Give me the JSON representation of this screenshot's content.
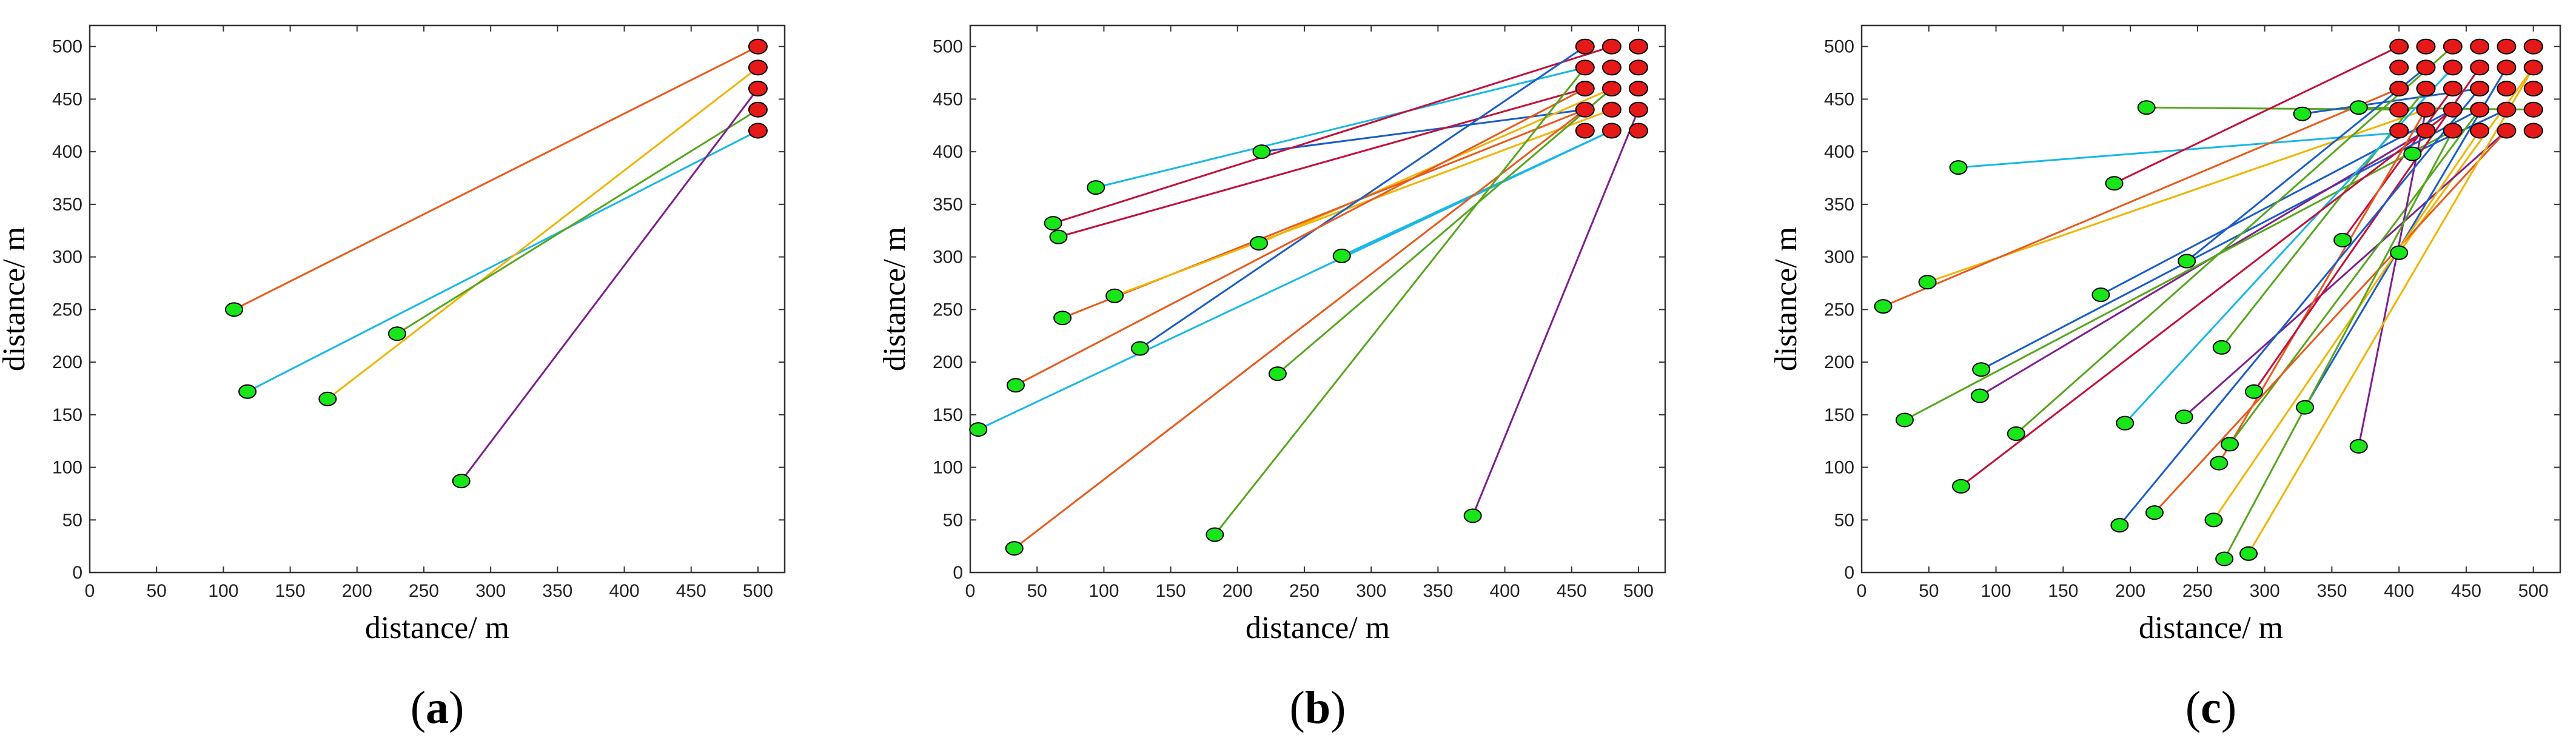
{
  "figure": {
    "colors": {
      "sensor": "#19e619",
      "base": "#e61919",
      "palette": [
        "#e85a1c",
        "#17b8e6",
        "#f0b400",
        "#56a61c",
        "#7e1f8e",
        "#1a5cc8",
        "#c2103b"
      ]
    }
  },
  "chart_data": [
    {
      "type": "scatter",
      "panel_label": "a",
      "xlabel": "distance/ m",
      "ylabel": "distance/ m",
      "xlim": [
        0,
        520
      ],
      "ylim": [
        0,
        520
      ],
      "xticks": [
        0,
        50,
        100,
        150,
        200,
        250,
        300,
        350,
        400,
        450,
        500
      ],
      "yticks": [
        0,
        50,
        100,
        150,
        200,
        250,
        300,
        350,
        400,
        450,
        500
      ],
      "base_stations": [
        [
          500,
          500
        ],
        [
          500,
          480
        ],
        [
          500,
          460
        ],
        [
          500,
          440
        ],
        [
          500,
          420
        ]
      ],
      "links": [
        {
          "from": [
            108,
            250
          ],
          "to": [
            500,
            500
          ],
          "color": "#e85a1c"
        },
        {
          "from": [
            118,
            172
          ],
          "to": [
            500,
            420
          ],
          "color": "#17b8e6"
        },
        {
          "from": [
            178,
            165
          ],
          "to": [
            500,
            480
          ],
          "color": "#f0b400"
        },
        {
          "from": [
            230,
            227
          ],
          "to": [
            500,
            440
          ],
          "color": "#56a61c"
        },
        {
          "from": [
            278,
            87
          ],
          "to": [
            500,
            460
          ],
          "color": "#7e1f8e"
        }
      ]
    },
    {
      "type": "scatter",
      "panel_label": "b",
      "xlabel": "distance/ m",
      "ylabel": "distance/ m",
      "xlim": [
        0,
        520
      ],
      "ylim": [
        0,
        520
      ],
      "xticks": [
        0,
        50,
        100,
        150,
        200,
        250,
        300,
        350,
        400,
        450,
        500
      ],
      "yticks": [
        0,
        50,
        100,
        150,
        200,
        250,
        300,
        350,
        400,
        450,
        500
      ],
      "base_stations": [
        [
          460,
          500
        ],
        [
          480,
          500
        ],
        [
          500,
          500
        ],
        [
          460,
          480
        ],
        [
          480,
          480
        ],
        [
          500,
          480
        ],
        [
          460,
          460
        ],
        [
          480,
          460
        ],
        [
          500,
          460
        ],
        [
          460,
          440
        ],
        [
          480,
          440
        ],
        [
          500,
          440
        ],
        [
          460,
          420
        ],
        [
          480,
          420
        ],
        [
          500,
          420
        ]
      ],
      "links": [
        {
          "from": [
            94,
            366
          ],
          "to": [
            460,
            480
          ],
          "color": "#17b8e6"
        },
        {
          "from": [
            218,
            400
          ],
          "to": [
            460,
            440
          ],
          "color": "#1a5cc8"
        },
        {
          "from": [
            62,
            332
          ],
          "to": [
            480,
            500
          ],
          "color": "#c2103b"
        },
        {
          "from": [
            66,
            319
          ],
          "to": [
            460,
            460
          ],
          "color": "#c2103b"
        },
        {
          "from": [
            216,
            313
          ],
          "to": [
            480,
            460
          ],
          "color": "#f0b400"
        },
        {
          "from": [
            69,
            242
          ],
          "to": [
            460,
            440
          ],
          "color": "#e85a1c"
        },
        {
          "from": [
            108,
            263
          ],
          "to": [
            480,
            440
          ],
          "color": "#f0b400"
        },
        {
          "from": [
            278,
            301
          ],
          "to": [
            480,
            420
          ],
          "color": "#17b8e6"
        },
        {
          "from": [
            127,
            213
          ],
          "to": [
            460,
            500
          ],
          "color": "#1a5cc8"
        },
        {
          "from": [
            34,
            178
          ],
          "to": [
            460,
            460
          ],
          "color": "#e85a1c"
        },
        {
          "from": [
            6,
            136
          ],
          "to": [
            480,
            420
          ],
          "color": "#17b8e6"
        },
        {
          "from": [
            230,
            189
          ],
          "to": [
            480,
            460
          ],
          "color": "#56a61c"
        },
        {
          "from": [
            33,
            23
          ],
          "to": [
            460,
            440
          ],
          "color": "#e85a1c"
        },
        {
          "from": [
            183,
            36
          ],
          "to": [
            460,
            480
          ],
          "color": "#56a61c"
        },
        {
          "from": [
            376,
            54
          ],
          "to": [
            500,
            440
          ],
          "color": "#7e1f8e"
        }
      ]
    },
    {
      "type": "scatter",
      "panel_label": "c",
      "xlabel": "distance/ m",
      "ylabel": "distance/ m",
      "xlim": [
        0,
        520
      ],
      "ylim": [
        0,
        520
      ],
      "xticks": [
        0,
        50,
        100,
        150,
        200,
        250,
        300,
        350,
        400,
        450,
        500
      ],
      "yticks": [
        0,
        50,
        100,
        150,
        200,
        250,
        300,
        350,
        400,
        450,
        500
      ],
      "base_stations": [
        [
          400,
          500
        ],
        [
          420,
          500
        ],
        [
          440,
          500
        ],
        [
          460,
          500
        ],
        [
          480,
          500
        ],
        [
          500,
          500
        ],
        [
          400,
          480
        ],
        [
          420,
          480
        ],
        [
          440,
          480
        ],
        [
          460,
          480
        ],
        [
          480,
          480
        ],
        [
          500,
          480
        ],
        [
          400,
          460
        ],
        [
          420,
          460
        ],
        [
          440,
          460
        ],
        [
          460,
          460
        ],
        [
          480,
          460
        ],
        [
          500,
          460
        ],
        [
          400,
          440
        ],
        [
          420,
          440
        ],
        [
          440,
          440
        ],
        [
          460,
          440
        ],
        [
          480,
          440
        ],
        [
          500,
          440
        ],
        [
          400,
          420
        ],
        [
          420,
          420
        ],
        [
          440,
          420
        ],
        [
          460,
          420
        ],
        [
          480,
          420
        ],
        [
          500,
          420
        ]
      ],
      "links": [
        {
          "from": [
            212,
            442
          ],
          "to": [
            400,
            440
          ],
          "color": "#56a61c"
        },
        {
          "from": [
            328,
            436
          ],
          "to": [
            460,
            460
          ],
          "color": "#1a5cc8"
        },
        {
          "from": [
            370,
            442
          ],
          "to": [
            500,
            440
          ],
          "color": "#56a61c"
        },
        {
          "from": [
            72,
            385
          ],
          "to": [
            420,
            420
          ],
          "color": "#17b8e6"
        },
        {
          "from": [
            188,
            370
          ],
          "to": [
            400,
            500
          ],
          "color": "#c2103b"
        },
        {
          "from": [
            410,
            398
          ],
          "to": [
            480,
            440
          ],
          "color": "#1a5cc8"
        },
        {
          "from": [
            358,
            316
          ],
          "to": [
            440,
            460
          ],
          "color": "#c2103b"
        },
        {
          "from": [
            400,
            304
          ],
          "to": [
            500,
            480
          ],
          "color": "#f0b400"
        },
        {
          "from": [
            49,
            276
          ],
          "to": [
            420,
            440
          ],
          "color": "#f0b400"
        },
        {
          "from": [
            16,
            253
          ],
          "to": [
            400,
            460
          ],
          "color": "#e85a1c"
        },
        {
          "from": [
            178,
            264
          ],
          "to": [
            440,
            440
          ],
          "color": "#1a5cc8"
        },
        {
          "from": [
            242,
            296
          ],
          "to": [
            420,
            480
          ],
          "color": "#1a5cc8"
        },
        {
          "from": [
            268,
            214
          ],
          "to": [
            420,
            460
          ],
          "color": "#56a61c"
        },
        {
          "from": [
            89,
            193
          ],
          "to": [
            460,
            440
          ],
          "color": "#1a5cc8"
        },
        {
          "from": [
            88,
            168
          ],
          "to": [
            420,
            420
          ],
          "color": "#7e1f8e"
        },
        {
          "from": [
            32,
            145
          ],
          "to": [
            440,
            420
          ],
          "color": "#56a61c"
        },
        {
          "from": [
            115,
            132
          ],
          "to": [
            440,
            500
          ],
          "color": "#56a61c"
        },
        {
          "from": [
            196,
            142
          ],
          "to": [
            440,
            480
          ],
          "color": "#17b8e6"
        },
        {
          "from": [
            240,
            148
          ],
          "to": [
            480,
            420
          ],
          "color": "#7e1f8e"
        },
        {
          "from": [
            74,
            82
          ],
          "to": [
            440,
            440
          ],
          "color": "#c2103b"
        },
        {
          "from": [
            266,
            104
          ],
          "to": [
            420,
            440
          ],
          "color": "#e85a1c"
        },
        {
          "from": [
            274,
            122
          ],
          "to": [
            460,
            440
          ],
          "color": "#56a61c"
        },
        {
          "from": [
            292,
            172
          ],
          "to": [
            460,
            480
          ],
          "color": "#c2103b"
        },
        {
          "from": [
            330,
            157
          ],
          "to": [
            480,
            480
          ],
          "color": "#1a5cc8"
        },
        {
          "from": [
            370,
            120
          ],
          "to": [
            420,
            440
          ],
          "color": "#7e1f8e"
        },
        {
          "from": [
            192,
            45
          ],
          "to": [
            460,
            460
          ],
          "color": "#1a5cc8"
        },
        {
          "from": [
            218,
            57
          ],
          "to": [
            480,
            420
          ],
          "color": "#e85a1c"
        },
        {
          "from": [
            262,
            50
          ],
          "to": [
            460,
            420
          ],
          "color": "#f0b400"
        },
        {
          "from": [
            270,
            13
          ],
          "to": [
            440,
            420
          ],
          "color": "#56a61c"
        },
        {
          "from": [
            288,
            18
          ],
          "to": [
            500,
            480
          ],
          "color": "#f0b400"
        }
      ]
    }
  ]
}
